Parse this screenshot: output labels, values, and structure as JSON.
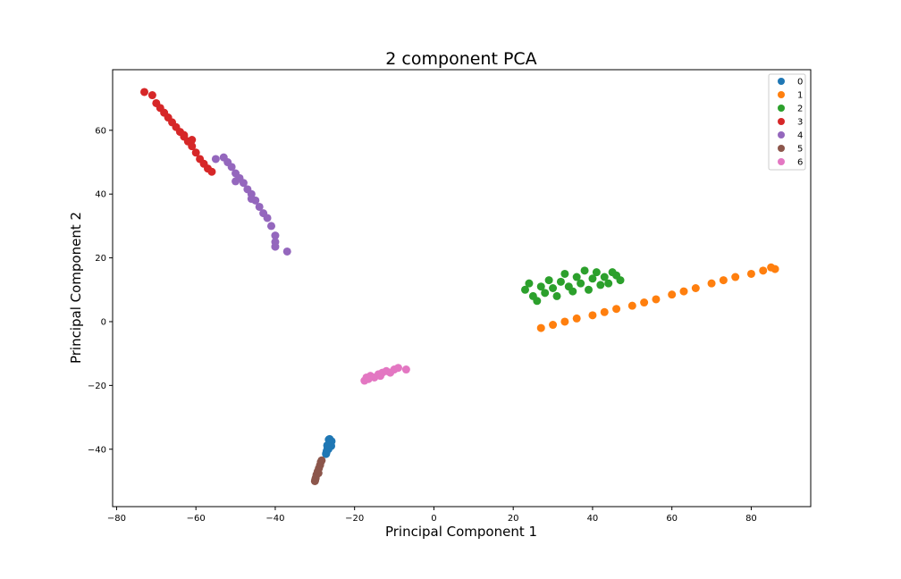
{
  "chart_data": {
    "type": "scatter",
    "title": "2 component PCA",
    "xlabel": "Principal Component 1",
    "ylabel": "Principal Component 2",
    "xlim": [
      -81,
      95
    ],
    "ylim": [
      -58,
      79
    ],
    "xticks": [
      -80,
      -60,
      -40,
      -20,
      0,
      20,
      40,
      60,
      80
    ],
    "yticks": [
      -40,
      -20,
      0,
      20,
      40,
      60
    ],
    "tick_labels_x": [
      "−80",
      "−60",
      "−40",
      "−20",
      "0",
      "20",
      "40",
      "60",
      "80"
    ],
    "tick_labels_y": [
      "−40",
      "−20",
      "0",
      "20",
      "40",
      "60"
    ],
    "grid": false,
    "legend_position": "top-right",
    "series": [
      {
        "name": "0",
        "color": "#1f77b4",
        "points": [
          [
            -26.5,
            -37.0
          ],
          [
            -25.8,
            -37.5
          ],
          [
            -26.0,
            -38.5
          ],
          [
            -26.8,
            -39.5
          ],
          [
            -27.0,
            -40.5
          ],
          [
            -27.2,
            -41.5
          ],
          [
            -26.2,
            -38.0
          ],
          [
            -25.9,
            -39.0
          ],
          [
            -26.6,
            -40.0
          ],
          [
            -27.1,
            -41.0
          ],
          [
            -26.3,
            -36.8
          ],
          [
            -26.9,
            -38.8
          ]
        ]
      },
      {
        "name": "1",
        "color": "#ff7f0e",
        "points": [
          [
            27,
            -2.0
          ],
          [
            30,
            -1.0
          ],
          [
            33,
            0
          ],
          [
            36,
            1.0
          ],
          [
            40,
            2.0
          ],
          [
            43,
            3.0
          ],
          [
            46,
            4.0
          ],
          [
            50,
            5.0
          ],
          [
            53,
            6.0
          ],
          [
            56,
            7.0
          ],
          [
            60,
            8.5
          ],
          [
            63,
            9.5
          ],
          [
            66,
            10.5
          ],
          [
            70,
            12.0
          ],
          [
            73,
            13.0
          ],
          [
            76,
            14.0
          ],
          [
            80,
            15.0
          ],
          [
            83,
            16.0
          ],
          [
            86,
            16.5
          ],
          [
            85,
            17.0
          ]
        ]
      },
      {
        "name": "2",
        "color": "#2ca02c",
        "points": [
          [
            23,
            10.0
          ],
          [
            24,
            12.0
          ],
          [
            25,
            8.0
          ],
          [
            26,
            6.5
          ],
          [
            27,
            11.0
          ],
          [
            28,
            9.0
          ],
          [
            29,
            13.0
          ],
          [
            30,
            10.5
          ],
          [
            31,
            8.0
          ],
          [
            32,
            12.5
          ],
          [
            33,
            15.0
          ],
          [
            34,
            11.0
          ],
          [
            35,
            9.5
          ],
          [
            36,
            14.0
          ],
          [
            37,
            12.0
          ],
          [
            38,
            16.0
          ],
          [
            39,
            10.0
          ],
          [
            40,
            13.5
          ],
          [
            41,
            15.5
          ],
          [
            42,
            11.5
          ],
          [
            43,
            14.0
          ],
          [
            44,
            12.0
          ],
          [
            45,
            15.5
          ],
          [
            46,
            14.5
          ],
          [
            47,
            13.0
          ]
        ]
      },
      {
        "name": "3",
        "color": "#d62728",
        "points": [
          [
            -73,
            72.0
          ],
          [
            -71,
            71.0
          ],
          [
            -70,
            68.5
          ],
          [
            -69,
            67.0
          ],
          [
            -68,
            65.5
          ],
          [
            -67,
            64.0
          ],
          [
            -66,
            62.5
          ],
          [
            -65,
            61.0
          ],
          [
            -64,
            59.5
          ],
          [
            -63,
            58.0
          ],
          [
            -62,
            56.5
          ],
          [
            -61,
            55.0
          ],
          [
            -60,
            53.0
          ],
          [
            -59,
            51.0
          ],
          [
            -58,
            49.5
          ],
          [
            -57,
            48.0
          ],
          [
            -56,
            47.0
          ],
          [
            -63,
            58.5
          ],
          [
            -61,
            57.0
          ]
        ]
      },
      {
        "name": "4",
        "color": "#9467bd",
        "points": [
          [
            -55,
            51.0
          ],
          [
            -53,
            51.5
          ],
          [
            -52,
            50.0
          ],
          [
            -51,
            48.5
          ],
          [
            -50,
            46.5
          ],
          [
            -49,
            45.0
          ],
          [
            -48,
            43.5
          ],
          [
            -47,
            41.5
          ],
          [
            -46,
            40.0
          ],
          [
            -45,
            38.0
          ],
          [
            -44,
            36.0
          ],
          [
            -43,
            34.0
          ],
          [
            -42,
            32.5
          ],
          [
            -41,
            30.0
          ],
          [
            -40,
            27.0
          ],
          [
            -40,
            25.0
          ],
          [
            -40,
            23.5
          ],
          [
            -37,
            22.0
          ],
          [
            -50,
            44.0
          ],
          [
            -46,
            38.5
          ]
        ]
      },
      {
        "name": "5",
        "color": "#8c564b",
        "points": [
          [
            -30,
            -50.0
          ],
          [
            -29.8,
            -49.0
          ],
          [
            -29.6,
            -48.0
          ],
          [
            -29.3,
            -47.0
          ],
          [
            -29.0,
            -46.0
          ],
          [
            -28.7,
            -45.0
          ],
          [
            -28.5,
            -44.0
          ],
          [
            -28.3,
            -43.5
          ],
          [
            -29.9,
            -49.5
          ],
          [
            -29.1,
            -47.5
          ]
        ]
      },
      {
        "name": "6",
        "color": "#e377c2",
        "points": [
          [
            -17.5,
            -18.5
          ],
          [
            -17,
            -17.5
          ],
          [
            -16,
            -17.0
          ],
          [
            -15,
            -17.5
          ],
          [
            -14,
            -16.5
          ],
          [
            -13,
            -16.0
          ],
          [
            -12,
            -15.5
          ],
          [
            -11,
            -16.0
          ],
          [
            -10,
            -15.0
          ],
          [
            -9,
            -14.5
          ],
          [
            -7,
            -15.0
          ],
          [
            -16.5,
            -18.0
          ],
          [
            -13.5,
            -17.0
          ]
        ]
      }
    ]
  }
}
